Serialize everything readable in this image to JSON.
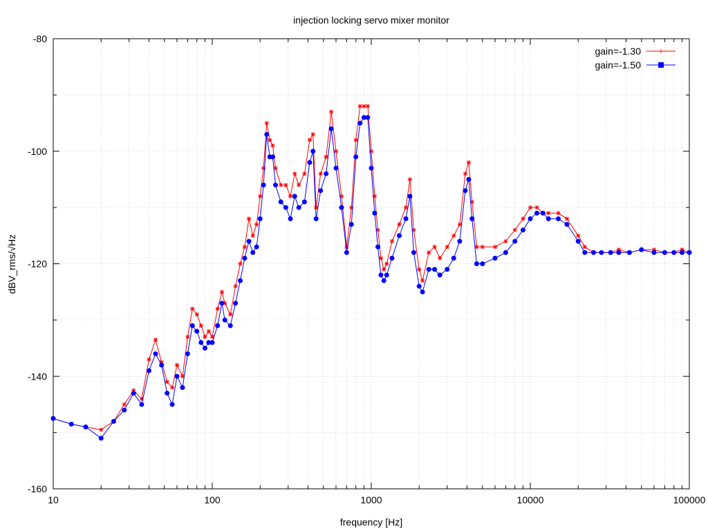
{
  "chart_data": {
    "type": "line",
    "title": "injection locking servo mixer monitor",
    "xlabel": "frequency [Hz]",
    "ylabel": "dBV_rms/√Hz",
    "xscale": "log",
    "xlim": [
      10,
      100000
    ],
    "ylim": [
      -160,
      -80
    ],
    "x_ticks": [
      10,
      100,
      1000,
      10000,
      100000
    ],
    "x_tick_labels": [
      "10",
      "100",
      "1000",
      "10000",
      "100000"
    ],
    "y_ticks": [
      -160,
      -140,
      -120,
      -100,
      -80
    ],
    "y_tick_labels": [
      "-160",
      "-140",
      "-120",
      "-100",
      "-80"
    ],
    "grid": true,
    "legend_position": "top-right",
    "series": [
      {
        "name": "gain=-1.30",
        "color": "#ff0000",
        "x": [
          10,
          13,
          16,
          20,
          24,
          28,
          32,
          36,
          40,
          44,
          48,
          52,
          56,
          60,
          65,
          70,
          75,
          80,
          85,
          90,
          95,
          100,
          108,
          115,
          120,
          130,
          140,
          150,
          160,
          170,
          180,
          190,
          200,
          210,
          220,
          230,
          240,
          250,
          270,
          290,
          310,
          330,
          350,
          380,
          410,
          430,
          450,
          480,
          520,
          560,
          600,
          650,
          700,
          750,
          800,
          850,
          900,
          950,
          1000,
          1050,
          1100,
          1150,
          1200,
          1250,
          1350,
          1500,
          1650,
          1750,
          1850,
          2000,
          2100,
          2300,
          2500,
          2700,
          3000,
          3300,
          3600,
          3900,
          4100,
          4300,
          4600,
          5000,
          6000,
          7000,
          8000,
          9000,
          10000,
          11000,
          12000,
          13000,
          15000,
          17000,
          20000,
          22000,
          25000,
          28000,
          32000,
          36000,
          42000,
          50000,
          60000,
          70000,
          80000,
          90000,
          100000
        ],
        "y": [
          -147.5,
          -148.5,
          -149,
          -149.5,
          -148,
          -145,
          -142.5,
          -144,
          -137,
          -133.5,
          -137.5,
          -141,
          -142,
          -138,
          -140,
          -133,
          -128,
          -129,
          -131,
          -133,
          -132,
          -133,
          -128,
          -125,
          -127,
          -129,
          -124,
          -120,
          -117,
          -112,
          -115,
          -113,
          -108,
          -103,
          -95,
          -98,
          -99,
          -103,
          -106,
          -106,
          -108,
          -104,
          -106,
          -104,
          -98,
          -97,
          -110,
          -104,
          -101,
          -93,
          -100,
          -108,
          -117,
          -110,
          -98,
          -92,
          -92,
          -92,
          -100,
          -108,
          -114,
          -119,
          -121,
          -120,
          -116,
          -113,
          -110,
          -105,
          -114,
          -121,
          -123,
          -118,
          -117,
          -119,
          -117,
          -115,
          -113,
          -104,
          -102,
          -109,
          -117,
          -117,
          -117,
          -116,
          -114,
          -112,
          -110,
          -110,
          -111,
          -111,
          -111,
          -112,
          -115,
          -117,
          -118,
          -118,
          -118,
          -117.5,
          -118,
          -117.5,
          -117.5,
          -118,
          -118,
          -117.5,
          -118
        ]
      },
      {
        "name": "gain=-1.50",
        "color": "#0000ff",
        "x": [
          10,
          13,
          16,
          20,
          24,
          28,
          32,
          36,
          40,
          44,
          48,
          52,
          56,
          60,
          65,
          70,
          75,
          80,
          85,
          90,
          95,
          100,
          108,
          115,
          120,
          130,
          140,
          150,
          160,
          170,
          180,
          190,
          200,
          210,
          220,
          230,
          240,
          250,
          270,
          290,
          310,
          330,
          350,
          380,
          410,
          430,
          450,
          480,
          520,
          560,
          600,
          650,
          700,
          750,
          800,
          850,
          900,
          950,
          1000,
          1050,
          1100,
          1150,
          1200,
          1250,
          1350,
          1500,
          1650,
          1750,
          1850,
          2000,
          2100,
          2300,
          2500,
          2700,
          3000,
          3300,
          3600,
          3900,
          4100,
          4300,
          4600,
          5000,
          6000,
          7000,
          8000,
          9000,
          10000,
          11000,
          12000,
          13000,
          15000,
          17000,
          20000,
          22000,
          25000,
          28000,
          32000,
          36000,
          42000,
          50000,
          60000,
          70000,
          80000,
          90000,
          100000
        ],
        "y": [
          -147.5,
          -148.5,
          -149,
          -151,
          -148,
          -146,
          -143,
          -145,
          -139,
          -136,
          -138,
          -143,
          -145,
          -140,
          -142,
          -136,
          -131,
          -132,
          -134,
          -135,
          -134,
          -134,
          -131,
          -127,
          -130,
          -131,
          -127,
          -123,
          -119,
          -116,
          -118,
          -117,
          -112,
          -106,
          -97,
          -101,
          -101,
          -106,
          -109,
          -110,
          -112,
          -108,
          -110,
          -109,
          -102,
          -100,
          -112,
          -107,
          -104,
          -96,
          -103,
          -110,
          -118,
          -113,
          -101,
          -95,
          -94,
          -94,
          -103,
          -111,
          -117,
          -122,
          -123,
          -122,
          -119,
          -115,
          -112,
          -108,
          -118,
          -124,
          -125,
          -121,
          -121,
          -122,
          -121,
          -119,
          -116,
          -107,
          -105,
          -112,
          -120,
          -120,
          -119,
          -118,
          -116,
          -114,
          -112,
          -111,
          -111,
          -112,
          -112,
          -113,
          -116,
          -118,
          -118,
          -118,
          -118,
          -118,
          -118,
          -117.5,
          -118,
          -118,
          -118,
          -118,
          -118
        ]
      }
    ]
  }
}
